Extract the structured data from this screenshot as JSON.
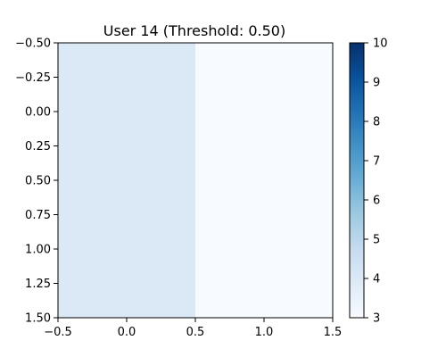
{
  "chart_data": {
    "type": "heatmap",
    "title": "User 14 (Threshold: 0.50)",
    "xlabel": "",
    "ylabel": "",
    "x_range": [
      -0.5,
      1.5
    ],
    "y_range": [
      -0.5,
      1.5
    ],
    "y_inverted": true,
    "x_ticks": [
      "−0.5",
      "0.0",
      "0.5",
      "1.0",
      "1.5"
    ],
    "y_ticks": [
      "−0.50",
      "−0.25",
      "0.00",
      "0.25",
      "0.50",
      "0.75",
      "1.00",
      "1.25",
      "1.50"
    ],
    "matrix": [
      [
        4,
        3
      ],
      [
        4,
        3
      ]
    ],
    "colormap": "Blues",
    "vmin": 3,
    "vmax": 10,
    "colorbar_ticks": [
      "3",
      "4",
      "5",
      "6",
      "7",
      "8",
      "9",
      "10"
    ],
    "grid": false
  }
}
